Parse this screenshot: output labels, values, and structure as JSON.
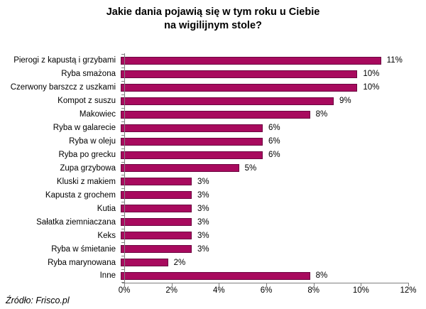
{
  "title": {
    "line1": "Jakie dania pojawią się w tym roku u Ciebie",
    "line2": "na wigilijnym stole?"
  },
  "source": "Źródło: Frisco.pl",
  "colors": {
    "bar_fill": "#A80A5E",
    "bar_border": "#6B0640",
    "axis": "#808080",
    "text": "#000000"
  },
  "chart_data": {
    "type": "bar",
    "orientation": "horizontal",
    "title": "Jakie dania pojawią się w tym roku u Ciebie na wigilijnym stole?",
    "categories": [
      "Pierogi z kapustą i grzybami",
      "Ryba smażona",
      "Czerwony barszcz z uszkami",
      "Kompot z suszu",
      "Makowiec",
      "Ryba w galarecie",
      "Ryba w oleju",
      "Ryba po grecku",
      "Zupa grzybowa",
      "Kluski z makiem",
      "Kapusta z grochem",
      "Kutia",
      "Sałatka ziemniaczana",
      "Keks",
      "Ryba w śmietanie",
      "Ryba marynowana",
      "Inne"
    ],
    "values": [
      11,
      10,
      10,
      9,
      8,
      6,
      6,
      6,
      5,
      3,
      3,
      3,
      3,
      3,
      3,
      2,
      8
    ],
    "value_labels": [
      "11%",
      "10%",
      "10%",
      "9%",
      "8%",
      "6%",
      "6%",
      "6%",
      "5%",
      "3%",
      "3%",
      "3%",
      "3%",
      "3%",
      "3%",
      "2%",
      "8%"
    ],
    "xlabel": "",
    "ylabel": "",
    "xlim": [
      0,
      12
    ],
    "xticks": [
      "0%",
      "2%",
      "4%",
      "6%",
      "8%",
      "10%",
      "12%"
    ],
    "xtick_values": [
      0,
      2,
      4,
      6,
      8,
      10,
      12
    ],
    "grid": "off",
    "legend": "none",
    "source": "Źródło: Frisco.pl"
  }
}
